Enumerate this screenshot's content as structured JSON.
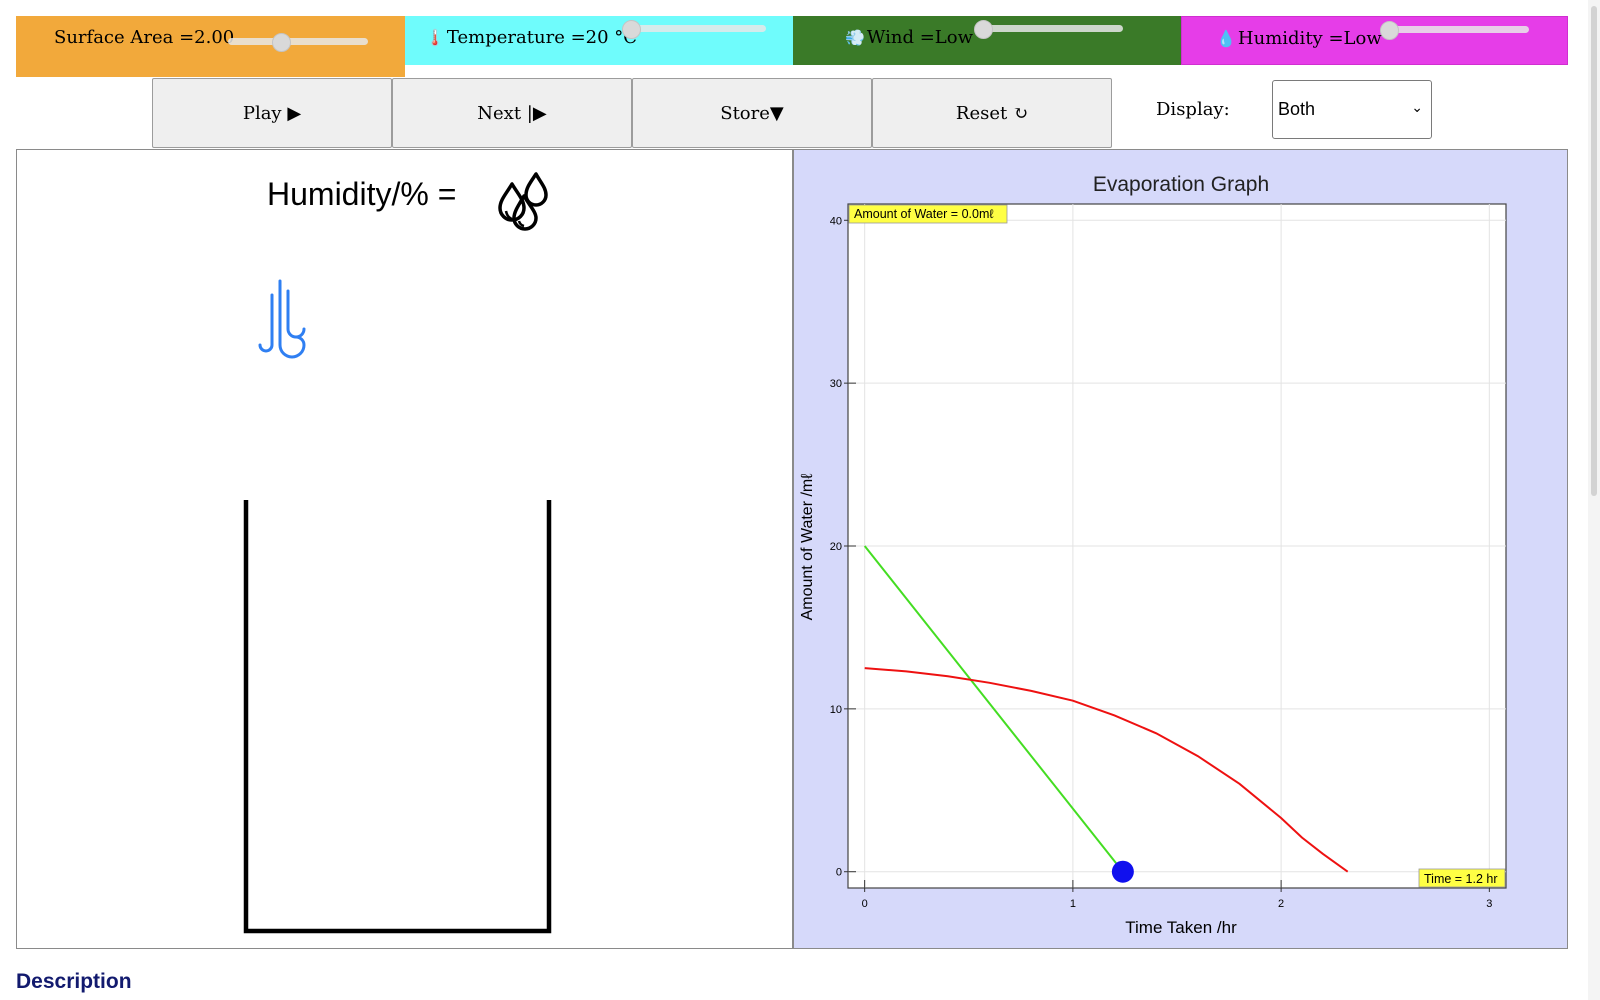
{
  "controls": {
    "surface_area": {
      "label": "Surface Area =2.00",
      "value": 0.38
    },
    "temperature": {
      "label": "Temperature =20 °C",
      "icon": "thermometer-icon",
      "value": 0.0
    },
    "wind": {
      "label": "Wind =Low",
      "icon": "wind-icon",
      "value": 0.0
    },
    "humidity": {
      "label": "Humidity =Low",
      "icon": "droplet-icon",
      "value": 0.0
    }
  },
  "buttons": {
    "play": "Play ▶",
    "next": "Next |▶",
    "store": "Store▼",
    "reset": "Reset ↻"
  },
  "display": {
    "label": "Display:",
    "selected": "Both"
  },
  "left_panel": {
    "humidity_title": "Humidity/% =",
    "icons": [
      "water-drops-icon",
      "wind-icon",
      "beaker-icon"
    ]
  },
  "description_heading": "Description",
  "colors": {
    "surface": "#f2a93b",
    "temperature": "#6ffcfc",
    "wind": "#3a7a28",
    "humidity": "#e63de8",
    "green_series": "#44dd22",
    "red_series": "#ee1111",
    "marker": "#1010ee",
    "panel_bg": "#d6d9fa"
  },
  "chart_data": {
    "type": "line",
    "title": "Evaporation Graph",
    "xlabel": "Time Taken /hr",
    "ylabel": "Amount of Water /mℓ",
    "xlim": [
      -0.08,
      3.08
    ],
    "ylim": [
      -1,
      41
    ],
    "xticks": [
      0,
      1,
      2,
      3
    ],
    "yticks": [
      0,
      10,
      20,
      30,
      40
    ],
    "grid": true,
    "series": [
      {
        "color": "#44dd22",
        "x": [
          0,
          1.24
        ],
        "y": [
          20,
          0
        ]
      },
      {
        "color": "#ee1111",
        "x": [
          0,
          0.2,
          0.4,
          0.6,
          0.8,
          1.0,
          1.2,
          1.4,
          1.6,
          1.8,
          2.0,
          2.1,
          2.2,
          2.32
        ],
        "y": [
          12.5,
          12.3,
          12.0,
          11.6,
          11.1,
          10.5,
          9.6,
          8.5,
          7.1,
          5.4,
          3.3,
          2.1,
          1.1,
          0
        ]
      }
    ],
    "marker": {
      "x": 1.24,
      "y": 0
    },
    "annotations": {
      "amount": "Amount of Water = 0.0mℓ",
      "time": "Time = 1.2 hr"
    }
  }
}
